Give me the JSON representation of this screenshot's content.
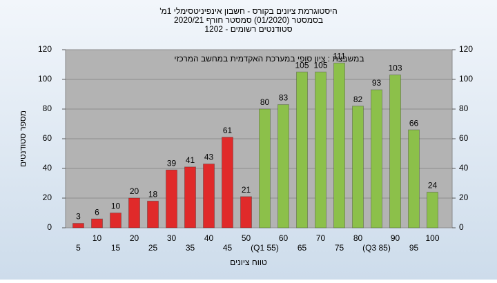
{
  "chart_data": {
    "type": "bar",
    "title": "היסטוגרמת ציונים בקורס - חשבון אינפיניטסימלי 1מ'",
    "subtitle": "בסמסטר  (01/2020)  סמסטר חורף  2020/21",
    "subtitle2": "סטודנטים רשומים - 1202",
    "annotation": "במשבצת : ציון סופי במערכת האקדמית במחשב המרכזי",
    "x_label": "טווח ציונים",
    "y_label": "מספר סטודנטים",
    "categories": [
      "5",
      "10",
      "15",
      "20",
      "25",
      "30",
      "35",
      "40",
      "45",
      "50",
      "(Q1 55)",
      "60",
      "65",
      "70",
      "75",
      "80",
      "(Q3 85)",
      "90",
      "95",
      "100"
    ],
    "series": [
      {
        "color": "#e02a2a",
        "values": [
          3,
          6,
          10,
          20,
          18,
          39,
          41,
          43,
          61,
          21,
          null,
          null,
          null,
          null,
          null,
          null,
          null,
          null,
          null,
          null
        ]
      },
      {
        "color": "#8cc04a",
        "values": [
          null,
          null,
          null,
          null,
          null,
          null,
          null,
          null,
          null,
          null,
          80,
          83,
          105,
          105,
          111,
          82,
          93,
          103,
          66,
          24
        ]
      }
    ],
    "ylim": [
      0,
      120
    ],
    "yticks": [
      0,
      20,
      40,
      60,
      80,
      100,
      120
    ],
    "y2lim": [
      0,
      120
    ],
    "y2ticks": [
      0,
      20,
      40,
      60,
      80,
      100,
      120
    ],
    "grid": true
  }
}
